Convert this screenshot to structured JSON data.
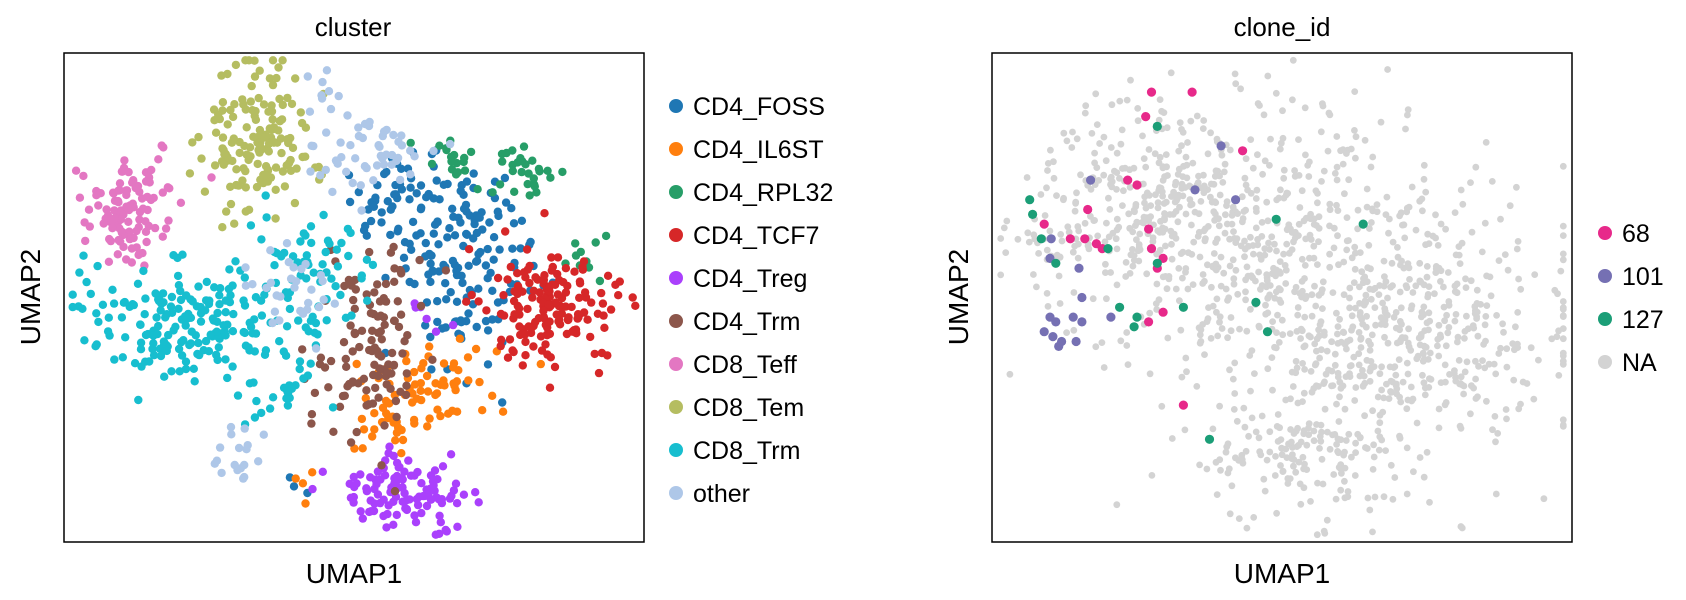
{
  "chart_data": [
    {
      "type": "scatter",
      "title": "cluster",
      "xlabel": "UMAP1",
      "ylabel": "UMAP2",
      "xlim": [
        0,
        100
      ],
      "ylim": [
        0,
        100
      ],
      "grid": false,
      "legend_position": "right",
      "legend": [
        {
          "label": "CD4_FOSS",
          "color": "#1f77b4"
        },
        {
          "label": "CD4_IL6ST",
          "color": "#ff7f0e"
        },
        {
          "label": "CD4_RPL32",
          "color": "#279e68"
        },
        {
          "label": "CD4_TCF7",
          "color": "#d62728"
        },
        {
          "label": "CD4_Treg",
          "color": "#aa40fc"
        },
        {
          "label": "CD4_Trm",
          "color": "#8c564b"
        },
        {
          "label": "CD8_Teff",
          "color": "#e377c2"
        },
        {
          "label": "CD8_Tem",
          "color": "#b5bd61"
        },
        {
          "label": "CD8_Trm",
          "color": "#17becf"
        },
        {
          "label": "other",
          "color": "#aec7e8"
        }
      ],
      "series": [
        {
          "name": "CD4_FOSS",
          "color": "#1f77b4",
          "regions": [
            {
              "cx": 68,
              "cy": 58,
              "rx": 12,
              "ry": 20,
              "n": 150
            },
            {
              "cx": 58,
              "cy": 72,
              "rx": 8,
              "ry": 10,
              "n": 40
            },
            {
              "cx": 40,
              "cy": 10,
              "rx": 3,
              "ry": 4,
              "n": 3
            }
          ]
        },
        {
          "name": "CD4_IL6ST",
          "color": "#ff7f0e",
          "regions": [
            {
              "cx": 63,
              "cy": 31,
              "rx": 10,
              "ry": 9,
              "n": 70
            },
            {
              "cx": 55,
              "cy": 22,
              "rx": 5,
              "ry": 5,
              "n": 12
            },
            {
              "cx": 42,
              "cy": 12,
              "rx": 3,
              "ry": 5,
              "n": 4
            }
          ]
        },
        {
          "name": "CD4_RPL32",
          "color": "#279e68",
          "regions": [
            {
              "cx": 80,
              "cy": 75,
              "rx": 6,
              "ry": 6,
              "n": 28
            },
            {
              "cx": 68,
              "cy": 78,
              "rx": 8,
              "ry": 4,
              "n": 18
            },
            {
              "cx": 90,
              "cy": 58,
              "rx": 3,
              "ry": 6,
              "n": 10
            }
          ]
        },
        {
          "name": "CD4_TCF7",
          "color": "#d62728",
          "regions": [
            {
              "cx": 84,
              "cy": 48,
              "rx": 11,
              "ry": 12,
              "n": 160
            }
          ]
        },
        {
          "name": "CD4_Treg",
          "color": "#aa40fc",
          "regions": [
            {
              "cx": 58,
              "cy": 10,
              "rx": 11,
              "ry": 7,
              "n": 110
            },
            {
              "cx": 63,
              "cy": 47,
              "rx": 4,
              "ry": 5,
              "n": 6
            }
          ]
        },
        {
          "name": "CD4_Trm",
          "color": "#8c564b",
          "regions": [
            {
              "cx": 53,
              "cy": 41,
              "rx": 8,
              "ry": 17,
              "n": 110
            },
            {
              "cx": 44,
              "cy": 30,
              "rx": 4,
              "ry": 8,
              "n": 8
            }
          ]
        },
        {
          "name": "CD8_Teff",
          "color": "#e377c2",
          "regions": [
            {
              "cx": 11,
              "cy": 68,
              "rx": 7,
              "ry": 10,
              "n": 110
            }
          ]
        },
        {
          "name": "CD8_Tem",
          "color": "#b5bd61",
          "regions": [
            {
              "cx": 33,
              "cy": 82,
              "rx": 9,
              "ry": 13,
              "n": 150
            }
          ]
        },
        {
          "name": "CD8_Trm",
          "color": "#17becf",
          "regions": [
            {
              "cx": 22,
              "cy": 45,
              "rx": 16,
              "ry": 11,
              "n": 190
            },
            {
              "cx": 42,
              "cy": 55,
              "rx": 10,
              "ry": 12,
              "n": 70
            },
            {
              "cx": 36,
              "cy": 30,
              "rx": 8,
              "ry": 5,
              "n": 20
            }
          ]
        },
        {
          "name": "other",
          "color": "#aec7e8",
          "regions": [
            {
              "cx": 52,
              "cy": 78,
              "rx": 10,
              "ry": 8,
              "n": 50
            },
            {
              "cx": 40,
              "cy": 52,
              "rx": 8,
              "ry": 10,
              "n": 30
            },
            {
              "cx": 31,
              "cy": 17,
              "rx": 4,
              "ry": 6,
              "n": 18
            },
            {
              "cx": 44,
              "cy": 90,
              "rx": 5,
              "ry": 5,
              "n": 10
            }
          ]
        }
      ]
    },
    {
      "type": "scatter",
      "title": "clone_id",
      "xlabel": "UMAP1",
      "ylabel": "UMAP2",
      "xlim": [
        0,
        100
      ],
      "ylim": [
        0,
        100
      ],
      "grid": false,
      "legend_position": "right",
      "legend": [
        {
          "label": "68",
          "color": "#e7298a"
        },
        {
          "label": "101",
          "color": "#7570b3"
        },
        {
          "label": "127",
          "color": "#1b9e77"
        },
        {
          "label": "NA",
          "color": "#d3d3d3"
        }
      ],
      "background": {
        "name": "NA",
        "color": "#d3d3d3",
        "regions": [
          {
            "cx": 45,
            "cy": 60,
            "rx": 30,
            "ry": 28,
            "n": 500
          },
          {
            "cx": 72,
            "cy": 42,
            "rx": 24,
            "ry": 24,
            "n": 450
          },
          {
            "cx": 28,
            "cy": 72,
            "rx": 18,
            "ry": 18,
            "n": 200
          },
          {
            "cx": 55,
            "cy": 18,
            "rx": 18,
            "ry": 12,
            "n": 150
          },
          {
            "cx": 12,
            "cy": 62,
            "rx": 8,
            "ry": 8,
            "n": 40
          }
        ]
      },
      "series": [
        {
          "name": "68",
          "color": "#e7298a",
          "points": [
            [
              27.5,
              92
            ],
            [
              34.5,
              92
            ],
            [
              26.5,
              87
            ],
            [
              43.2,
              80
            ],
            [
              23.4,
              74
            ],
            [
              25.0,
              73
            ],
            [
              16.5,
              68
            ],
            [
              9.0,
              65
            ],
            [
              16.0,
              62
            ],
            [
              13.5,
              62
            ],
            [
              18.0,
              61
            ],
            [
              19.0,
              60
            ],
            [
              27.0,
              64
            ],
            [
              27.5,
              60
            ],
            [
              29.5,
              58
            ],
            [
              28.5,
              56
            ],
            [
              29.5,
              47
            ],
            [
              27.0,
              45
            ],
            [
              33.0,
              28
            ]
          ]
        },
        {
          "name": "101",
          "color": "#7570b3",
          "points": [
            [
              39.5,
              81
            ],
            [
              17.0,
              74
            ],
            [
              35.0,
              72
            ],
            [
              42.0,
              70
            ],
            [
              10.2,
              62
            ],
            [
              10.0,
              58
            ],
            [
              15.0,
              56
            ],
            [
              15.5,
              50
            ],
            [
              20.5,
              46
            ],
            [
              10.0,
              46
            ],
            [
              11.0,
              45
            ],
            [
              14.0,
              46
            ],
            [
              15.5,
              45
            ],
            [
              9.0,
              43
            ],
            [
              10.5,
              42
            ],
            [
              12.0,
              41
            ],
            [
              11.5,
              40
            ],
            [
              14.5,
              41
            ]
          ]
        },
        {
          "name": "127",
          "color": "#1b9e77",
          "points": [
            [
              28.5,
              85
            ],
            [
              6.5,
              70
            ],
            [
              7.0,
              67
            ],
            [
              8.5,
              62
            ],
            [
              11.0,
              57
            ],
            [
              20.0,
              60
            ],
            [
              49.0,
              66
            ],
            [
              64.0,
              65
            ],
            [
              28.5,
              57
            ],
            [
              22.0,
              48
            ],
            [
              33.0,
              48
            ],
            [
              45.5,
              49
            ],
            [
              25.0,
              46
            ],
            [
              24.5,
              44
            ],
            [
              47.5,
              43
            ],
            [
              37.5,
              21
            ]
          ]
        }
      ]
    }
  ]
}
